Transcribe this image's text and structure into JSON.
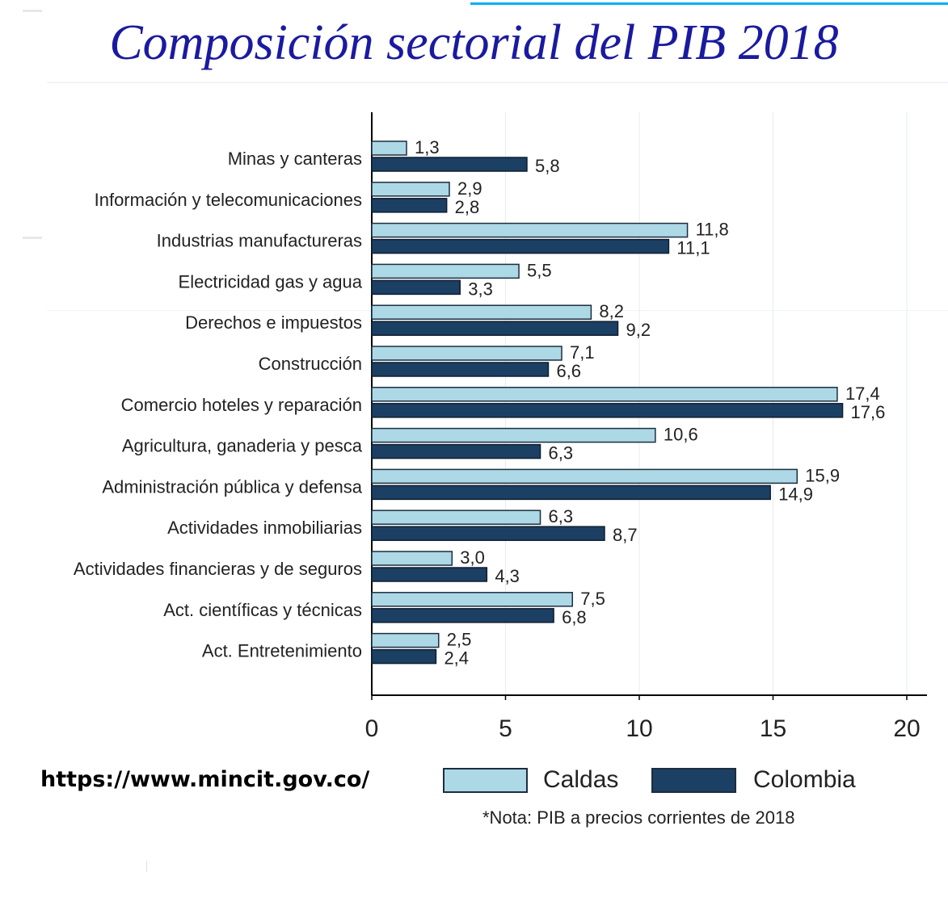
{
  "page": {
    "title": "Composición sectorial del PIB 2018",
    "url": "https://www.mincit.gov.co/",
    "note": "*Nota: PIB a precios corrientes de 2018"
  },
  "colors": {
    "caldas": "#add8e6",
    "colombia": "#1c3f64",
    "title": "#1a1aa0",
    "accent_line": "#00b0f0",
    "grid": "#e6ecf0",
    "axis": "#000000"
  },
  "chart_data": {
    "type": "bar",
    "orientation": "horizontal",
    "title": "Composición sectorial del PIB 2018",
    "xlabel": "",
    "ylabel": "",
    "xlim": [
      0,
      20
    ],
    "xticks": [
      0,
      5,
      10,
      15,
      20
    ],
    "grid": true,
    "legend_position": "bottom",
    "categories": [
      "Minas y canteras",
      "Información y telecomunicaciones",
      "Industrias manufactureras",
      "Electricidad gas y agua",
      "Derechos e impuestos",
      "Construcción",
      "Comercio hoteles y reparación",
      "Agricultura, ganaderia y pesca",
      "Administración pública y defensa",
      "Actividades inmobiliarias",
      "Actividades financieras y de seguros",
      "Act. científicas y técnicas",
      "Act. Entretenimiento"
    ],
    "series": [
      {
        "name": "Caldas",
        "values": [
          1.3,
          2.9,
          11.8,
          5.5,
          8.2,
          7.1,
          17.4,
          10.6,
          15.9,
          6.3,
          3.0,
          7.5,
          2.5
        ],
        "labels": [
          "1,3",
          "2,9",
          "11,8",
          "5,5",
          "8,2",
          "7,1",
          "17,4",
          "10,6",
          "15,9",
          "6,3",
          "3,0",
          "7,5",
          "2,5"
        ]
      },
      {
        "name": "Colombia",
        "values": [
          5.8,
          2.8,
          11.1,
          3.3,
          9.2,
          6.6,
          17.6,
          6.3,
          14.9,
          8.7,
          4.3,
          6.8,
          2.4
        ],
        "labels": [
          "5,8",
          "2,8",
          "11,1",
          "3,3",
          "9,2",
          "6,6",
          "17,6",
          "6,3",
          "14,9",
          "8,7",
          "4,3",
          "6,8",
          "2,4"
        ]
      }
    ]
  }
}
